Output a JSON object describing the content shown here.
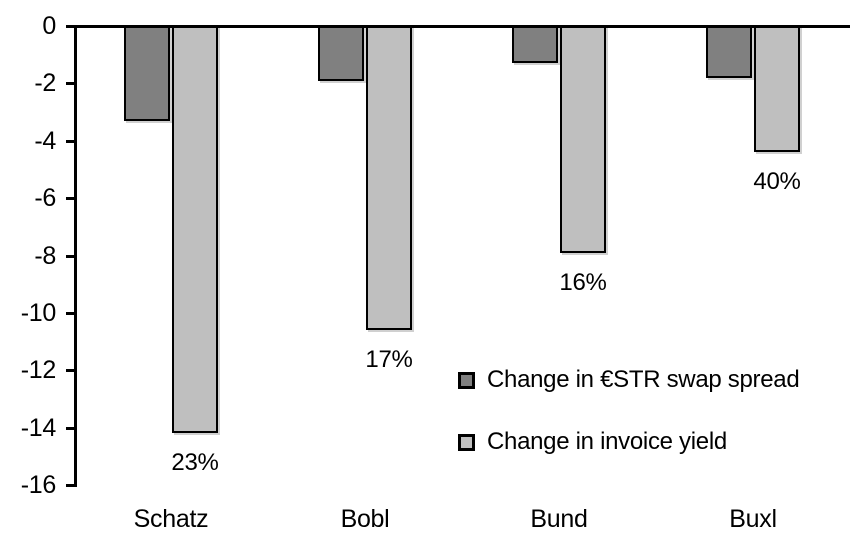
{
  "chart_data": {
    "type": "bar",
    "title": "",
    "xlabel": "",
    "ylabel": "",
    "categories": [
      "Schatz",
      "Bobl",
      "Bund",
      "Buxl"
    ],
    "series": [
      {
        "key": "estr-swap-spread",
        "name": "Change in €STR swap spread",
        "color": "#808080",
        "values": [
          -3.3,
          -1.9,
          -1.3,
          -1.8
        ]
      },
      {
        "key": "invoice-yield",
        "name": "Change in invoice yield",
        "color": "#BFBFBF",
        "values": [
          -14.2,
          -10.6,
          -7.9,
          -4.4
        ],
        "point_labels": [
          "23%",
          "17%",
          "16%",
          "40%"
        ]
      }
    ],
    "ylim": [
      -16,
      0
    ],
    "yticks": [
      0,
      -2,
      -4,
      -6,
      -8,
      -10,
      -12,
      -14,
      -16
    ],
    "ytick_labels": [
      "0",
      "-2",
      "-4",
      "-6",
      "-8",
      "-10",
      "-12",
      "-14",
      "-16"
    ],
    "grid": false,
    "legend_position": "inside-bottom-right",
    "colors": {
      "axis": "#000000",
      "bar_border": "#000000",
      "background": "#FFFFFF",
      "text": "#000000"
    }
  }
}
